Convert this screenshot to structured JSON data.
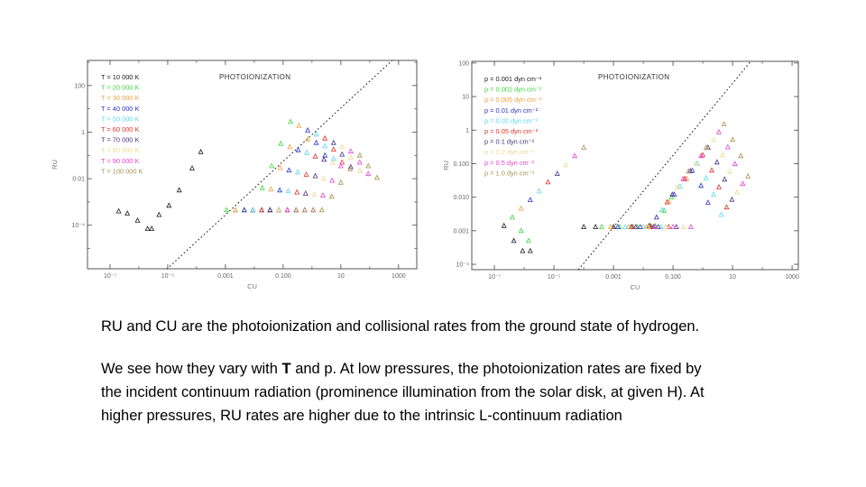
{
  "slide": {
    "background_color": "#ffffff"
  },
  "text_block": {
    "paragraph1": "RU and CU are the photoionization and collisional rates from the ground state of hydrogen.",
    "paragraph2": {
      "line1_pre": "We see how they vary with ",
      "line1_bold": "T",
      "line1_post": " and p. At low pressures, the photoionization rates are fixed by",
      "line2": "the incident continuum radiation (prominence illumination from the solar disk, at given H). At",
      "line3": "higher pressures, RU rates are higher due to the intrinsic L-continuum radiation"
    }
  },
  "chart_data": [
    {
      "type": "scatter",
      "title": "PHOTOIONIZATION",
      "xlabel": "CU",
      "ylabel": "RU",
      "x_scale": "log",
      "y_scale": "log",
      "x_log_range": [
        -7.78,
        3.63
      ],
      "y_log_range": [
        -5.87,
        3.08
      ],
      "x_ticks": [
        {
          "log": -7,
          "label": "10⁻⁷"
        },
        {
          "log": -5,
          "label": "10⁻⁵"
        },
        {
          "log": -3,
          "label": "0.001"
        },
        {
          "log": -1,
          "label": "0.100"
        },
        {
          "log": 1,
          "label": "10"
        },
        {
          "log": 3,
          "label": "1000"
        }
      ],
      "y_ticks": [
        {
          "log": 2,
          "label": "100"
        },
        {
          "log": 0,
          "label": "1"
        },
        {
          "log": -2,
          "label": "0.01"
        },
        {
          "log": -4,
          "label": "10⁻⁴"
        }
      ],
      "grid": false,
      "legend_position": "top-left",
      "marker": "open-triangle",
      "ref_line": {
        "style": "dotted",
        "from": [
          9.3e-06,
          1.3e-06
        ],
        "to": [
          600,
          1200
        ]
      },
      "series": [
        {
          "name": "T = 10 000 K",
          "color": "#1a1a1a",
          "points": [
            [
              2e-07,
              0.0004
            ],
            [
              4e-07,
              0.00032
            ],
            [
              9e-07,
              0.00016
            ],
            [
              2e-06,
              7e-05
            ],
            [
              2.8e-06,
              7e-05
            ],
            [
              5e-06,
              0.00028
            ],
            [
              1.1e-05,
              0.0007
            ],
            [
              2.5e-05,
              0.0032
            ],
            [
              7e-05,
              0.028
            ],
            [
              0.00014,
              0.14
            ]
          ]
        },
        {
          "name": "T = 20 000 K",
          "color": "#3fd63f",
          "points": [
            [
              0.0011,
              0.00045
            ],
            [
              0.0022,
              0.00045
            ],
            [
              0.0045,
              0.00045
            ],
            [
              0.0089,
              0.00045
            ],
            [
              0.019,
              0.004
            ],
            [
              0.04,
              0.035
            ],
            [
              0.083,
              0.32
            ],
            [
              0.18,
              2.8
            ]
          ]
        },
        {
          "name": "T = 30 000 K",
          "color": "#f0a040",
          "points": [
            [
              0.0022,
              0.00045
            ],
            [
              0.0045,
              0.00045
            ],
            [
              0.0089,
              0.00045
            ],
            [
              0.018,
              0.00045
            ],
            [
              0.038,
              0.0035
            ],
            [
              0.079,
              0.029
            ],
            [
              0.17,
              0.23
            ],
            [
              0.35,
              1.9
            ],
            [
              0.71,
              0.5
            ]
          ]
        },
        {
          "name": "T = 40 000 K",
          "color": "#2a35c8",
          "points": [
            [
              0.0045,
              0.00045
            ],
            [
              0.0089,
              0.00045
            ],
            [
              0.018,
              0.00045
            ],
            [
              0.035,
              0.00045
            ],
            [
              0.076,
              0.0032
            ],
            [
              0.16,
              0.023
            ],
            [
              0.33,
              0.17
            ],
            [
              0.71,
              1.2
            ],
            [
              1.4,
              0.35
            ],
            [
              2.8,
              0.1
            ]
          ]
        },
        {
          "name": "T = 50 000 K",
          "color": "#5cd8ee",
          "points": [
            [
              0.0089,
              0.00045
            ],
            [
              0.018,
              0.00045
            ],
            [
              0.035,
              0.00045
            ],
            [
              0.071,
              0.00045
            ],
            [
              0.15,
              0.0029
            ],
            [
              0.32,
              0.019
            ],
            [
              0.66,
              0.13
            ],
            [
              1.4,
              0.81
            ],
            [
              2.8,
              0.25
            ],
            [
              5.6,
              0.071
            ]
          ]
        },
        {
          "name": "T = 60 000 K",
          "color": "#e03228",
          "points": [
            [
              0.018,
              0.00045
            ],
            [
              0.035,
              0.00045
            ],
            [
              0.071,
              0.00045
            ],
            [
              0.14,
              0.00045
            ],
            [
              0.3,
              0.0026
            ],
            [
              0.63,
              0.015
            ],
            [
              1.3,
              0.091
            ],
            [
              2.8,
              0.54
            ],
            [
              5.6,
              0.18
            ],
            [
              11,
              0.05
            ]
          ]
        },
        {
          "name": "T = 70 000 K",
          "color": "#443184",
          "points": [
            [
              0.035,
              0.00045
            ],
            [
              0.071,
              0.00045
            ],
            [
              0.14,
              0.00045
            ],
            [
              0.28,
              0.00045
            ],
            [
              0.6,
              0.0023
            ],
            [
              1.3,
              0.013
            ],
            [
              2.6,
              0.066
            ],
            [
              5.6,
              0.35
            ],
            [
              11,
              0.11
            ],
            [
              22,
              0.032
            ]
          ]
        },
        {
          "name": "T = 80 000 K",
          "color": "#eeda8e",
          "points": [
            [
              0.071,
              0.00045
            ],
            [
              0.14,
              0.00045
            ],
            [
              0.28,
              0.00045
            ],
            [
              0.56,
              0.00045
            ],
            [
              1.2,
              0.0021
            ],
            [
              2.5,
              0.01
            ],
            [
              5.2,
              0.049
            ],
            [
              11,
              0.23
            ],
            [
              22,
              0.079
            ],
            [
              45,
              0.022
            ]
          ]
        },
        {
          "name": "T = 90 000 K",
          "color": "#ea3fd6",
          "points": [
            [
              0.14,
              0.00045
            ],
            [
              0.28,
              0.00045
            ],
            [
              0.56,
              0.00045
            ],
            [
              1.1,
              0.00045
            ],
            [
              2.4,
              0.0019
            ],
            [
              5.0,
              0.0083
            ],
            [
              10,
              0.035
            ],
            [
              22,
              0.15
            ],
            [
              45,
              0.05
            ],
            [
              89,
              0.016
            ]
          ]
        },
        {
          "name": "T = 100 000 K",
          "color": "#a98f4f",
          "points": [
            [
              0.28,
              0.00045
            ],
            [
              0.56,
              0.00045
            ],
            [
              1.1,
              0.00045
            ],
            [
              2.2,
              0.00045
            ],
            [
              4.8,
              0.0017
            ],
            [
              10,
              0.0068
            ],
            [
              21,
              0.026
            ],
            [
              45,
              0.1
            ],
            [
              89,
              0.035
            ],
            [
              180,
              0.011
            ]
          ]
        }
      ]
    },
    {
      "type": "scatter",
      "title": "PHOTOIONIZATION",
      "xlabel": "CU",
      "ylabel": "RU",
      "x_scale": "log",
      "y_scale": "log",
      "x_log_range": [
        -7.76,
        3.21
      ],
      "y_log_range": [
        -4.16,
        2.05
      ],
      "x_ticks": [
        {
          "log": -7,
          "label": "10⁻⁷"
        },
        {
          "log": -5,
          "label": "10⁻⁵"
        },
        {
          "log": -3,
          "label": "0.001"
        },
        {
          "log": -1,
          "label": "0.100"
        },
        {
          "log": 1,
          "label": "10"
        },
        {
          "log": 3,
          "label": "1000"
        }
      ],
      "y_ticks": [
        {
          "log": 2,
          "label": "100"
        },
        {
          "log": 1,
          "label": "10"
        },
        {
          "log": 0,
          "label": "1"
        },
        {
          "log": -1,
          "label": "0.100"
        },
        {
          "log": -2,
          "label": "0.010"
        },
        {
          "log": -3,
          "label": "0.001"
        },
        {
          "log": -4,
          "label": "10⁻⁴"
        }
      ],
      "grid": false,
      "legend_position": "top-left",
      "marker": "open-triangle",
      "ref_line": {
        "style": "dotted",
        "from": [
          6.6e-05,
          6.9e-05
        ],
        "to": [
          41,
          112
        ]
      },
      "series": [
        {
          "name": "p = 0.001 dyn cm⁻²",
          "color": "#1a1a1a",
          "points": [
            [
              2.1e-07,
              0.0014
            ],
            [
              4.5e-07,
              0.0005
            ],
            [
              8.9e-07,
              0.00025
            ],
            [
              1.6e-06,
              0.00025
            ],
            [
              0.0001,
              0.0013
            ],
            [
              0.00025,
              0.0013
            ],
            [
              0.001,
              0.0013
            ],
            [
              0.004,
              0.0013
            ],
            [
              0.016,
              0.0014
            ]
          ]
        },
        {
          "name": "p = 0.002 dyn cm⁻²",
          "color": "#3fd63f",
          "points": [
            [
              4e-07,
              0.0025
            ],
            [
              7.9e-07,
              0.001
            ],
            [
              1.4e-06,
              0.0005
            ],
            [
              0.0004,
              0.0013
            ],
            [
              0.0016,
              0.0013
            ],
            [
              0.0063,
              0.0013
            ],
            [
              0.025,
              0.0014
            ],
            [
              0.05,
              0.004
            ],
            [
              0.089,
              0.01
            ]
          ]
        },
        {
          "name": "p = 0.005 dyn cm⁻²",
          "color": "#f0a040",
          "points": [
            [
              7.9e-07,
              0.0046
            ],
            [
              0.00079,
              0.0013
            ],
            [
              0.0032,
              0.0013
            ],
            [
              0.013,
              0.0013
            ],
            [
              0.018,
              0.0014
            ],
            [
              0.072,
              0.0072
            ],
            [
              0.29,
              0.036
            ]
          ]
        },
        {
          "name": "p = 0.01 dyn cm⁻²",
          "color": "#2a35c8",
          "points": [
            [
              1.6e-06,
              0.0083
            ],
            [
              0.0014,
              0.0013
            ],
            [
              0.0056,
              0.0013
            ],
            [
              0.022,
              0.0013
            ],
            [
              0.028,
              0.0025
            ],
            [
              0.11,
              0.012
            ],
            [
              0.44,
              0.062
            ],
            [
              0.87,
              0.022
            ],
            [
              1.5,
              0.0069
            ]
          ]
        },
        {
          "name": "p = 0.02 dyn cm⁻²",
          "color": "#5cd8ee",
          "points": [
            [
              3.2e-06,
              0.015
            ],
            [
              0.0025,
              0.0013
            ],
            [
              0.01,
              0.0013
            ],
            [
              0.04,
              0.0013
            ],
            [
              0.042,
              0.0042
            ],
            [
              0.17,
              0.021
            ],
            [
              0.66,
              0.1
            ],
            [
              1.3,
              0.037
            ],
            [
              2.3,
              0.012
            ],
            [
              4.2,
              0.003
            ]
          ]
        },
        {
          "name": "p = 0.05 dyn cm⁻²",
          "color": "#e03228",
          "points": [
            [
              6.3e-06,
              0.028
            ],
            [
              0.0045,
              0.0013
            ],
            [
              0.018,
              0.0013
            ],
            [
              0.071,
              0.0013
            ],
            [
              0.063,
              0.0071
            ],
            [
              0.25,
              0.035
            ],
            [
              1.0,
              0.18
            ],
            [
              2.0,
              0.063
            ],
            [
              3.5,
              0.02
            ],
            [
              6.3,
              0.005
            ]
          ]
        },
        {
          "name": "p = 0.1 dyn cm⁻²",
          "color": "#443184",
          "points": [
            [
              1.3e-05,
              0.05
            ],
            [
              0.0079,
              0.0013
            ],
            [
              0.032,
              0.0013
            ],
            [
              0.13,
              0.0013
            ],
            [
              0.095,
              0.012
            ],
            [
              0.38,
              0.06
            ],
            [
              1.5,
              0.3
            ],
            [
              3.0,
              0.11
            ],
            [
              5.4,
              0.034
            ],
            [
              9.5,
              0.0085
            ]
          ]
        },
        {
          "name": "p = 0.2 dyn cm⁻²",
          "color": "#eeda8e",
          "points": [
            [
              2.5e-05,
              0.091
            ],
            [
              0.014,
              0.0013
            ],
            [
              0.056,
              0.0013
            ],
            [
              0.22,
              0.0013
            ],
            [
              0.14,
              0.02
            ],
            [
              0.58,
              0.1
            ],
            [
              2.3,
              0.51
            ],
            [
              4.6,
              0.18
            ],
            [
              8.1,
              0.058
            ],
            [
              14,
              0.014
            ]
          ]
        },
        {
          "name": "p = 0.5 dyn cm⁻²",
          "color": "#ea3fd6",
          "points": [
            [
              5e-05,
              0.17
            ],
            [
              0.025,
              0.0013
            ],
            [
              0.1,
              0.0013
            ],
            [
              0.4,
              0.0013
            ],
            [
              0.22,
              0.035
            ],
            [
              0.87,
              0.17
            ],
            [
              3.5,
              0.87
            ],
            [
              6.9,
              0.31
            ],
            [
              12,
              0.098
            ],
            [
              22,
              0.025
            ]
          ]
        },
        {
          "name": "p = 1.0 dyn cm⁻²",
          "color": "#a98f4f",
          "points": [
            [
              0.0001,
              0.3
            ],
            [
              0.33,
              0.059
            ],
            [
              1.3,
              0.3
            ],
            [
              5.2,
              1.5
            ],
            [
              10,
              0.52
            ],
            [
              19,
              0.17
            ],
            [
              33,
              0.042
            ]
          ]
        }
      ]
    }
  ],
  "style_colors": {
    "axis_frame": "#444444",
    "tick_text": "#666666",
    "axis_label_text": "#777777",
    "title_text": "#333333",
    "ref_line": "#111111"
  }
}
